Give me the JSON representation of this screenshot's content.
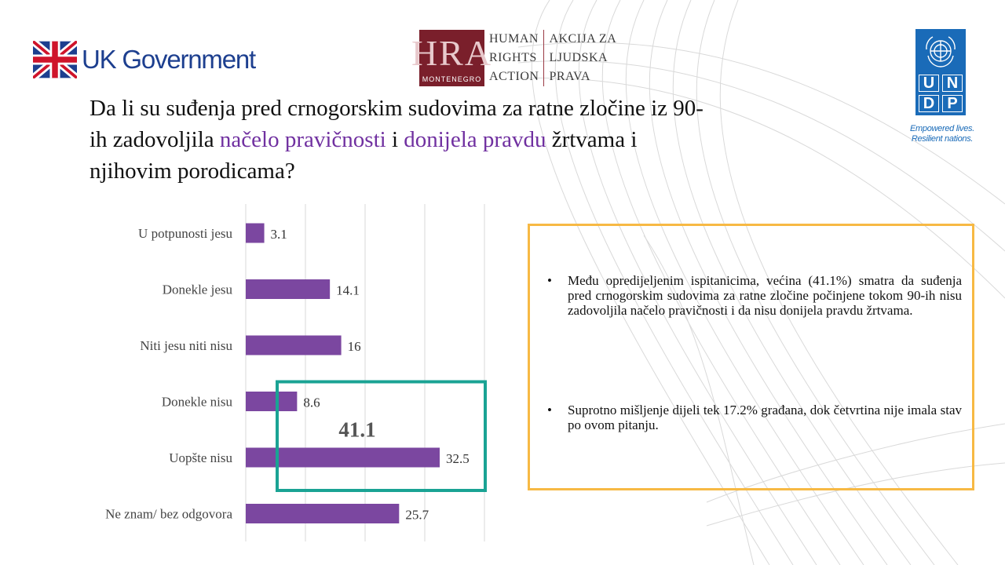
{
  "logos": {
    "uk_government": "UK Government",
    "hra": {
      "letters": "HRA",
      "sub": "MONTENEGRO",
      "col1": [
        "HUMAN",
        "RIGHTS",
        "ACTION"
      ],
      "col2": [
        "AKCIJA ZA",
        "LJUDSKA",
        "PRAVA"
      ]
    },
    "undp": {
      "letters": [
        "U",
        "N",
        "D",
        "P"
      ],
      "tagline_1": "Empowered lives.",
      "tagline_2": "Resilient nations."
    }
  },
  "title": {
    "part1": "Da li su suđenja pred crnogorskim sudovima za ratne zločine iz 90-ih zadovoljila ",
    "highlight1": "načelo pravičnosti",
    "part2": " i ",
    "highlight2": "donijela pravdu",
    "part3": " žrtvama i njihovim porodicama?"
  },
  "chart_data": {
    "type": "bar",
    "orientation": "horizontal",
    "categories": [
      "U potpunosti jesu",
      "Donekle jesu",
      "Niti jesu niti nisu",
      "Donekle nisu",
      "Uopšte nisu",
      "Ne znam/ bez odgovora"
    ],
    "values": [
      3.1,
      14.1,
      16,
      8.6,
      32.5,
      25.7
    ],
    "value_labels": [
      "3.1",
      "14.1",
      "16",
      "8.6",
      "32.5",
      "25.7"
    ],
    "xlim": [
      0,
      40
    ],
    "grid": true,
    "bar_color": "#7b47a0",
    "highlight": {
      "categories": [
        "Donekle nisu",
        "Uopšte nisu"
      ],
      "label": "41.1",
      "color": "#1aa394"
    }
  },
  "info": {
    "bullets": [
      "Među opredijeljenim ispitanicima, većina (41.1%) smatra da suđenja pred crnogorskim sudovima za ratne zločine počinjene tokom 90-ih nisu zadovoljila načelo pravičnosti i da nisu donijela pravdu žrtvama.",
      "Suprotno mišljenje dijeli tek 17.2% građana, dok četvrtina nije imala stav po ovom pitanju."
    ],
    "border_color": "#f7b944"
  },
  "colors": {
    "accent": "#7030a0",
    "undp_blue": "#1a6bb8",
    "uk_blue": "#1d3f8f",
    "hra_red": "#7a1f2b"
  }
}
